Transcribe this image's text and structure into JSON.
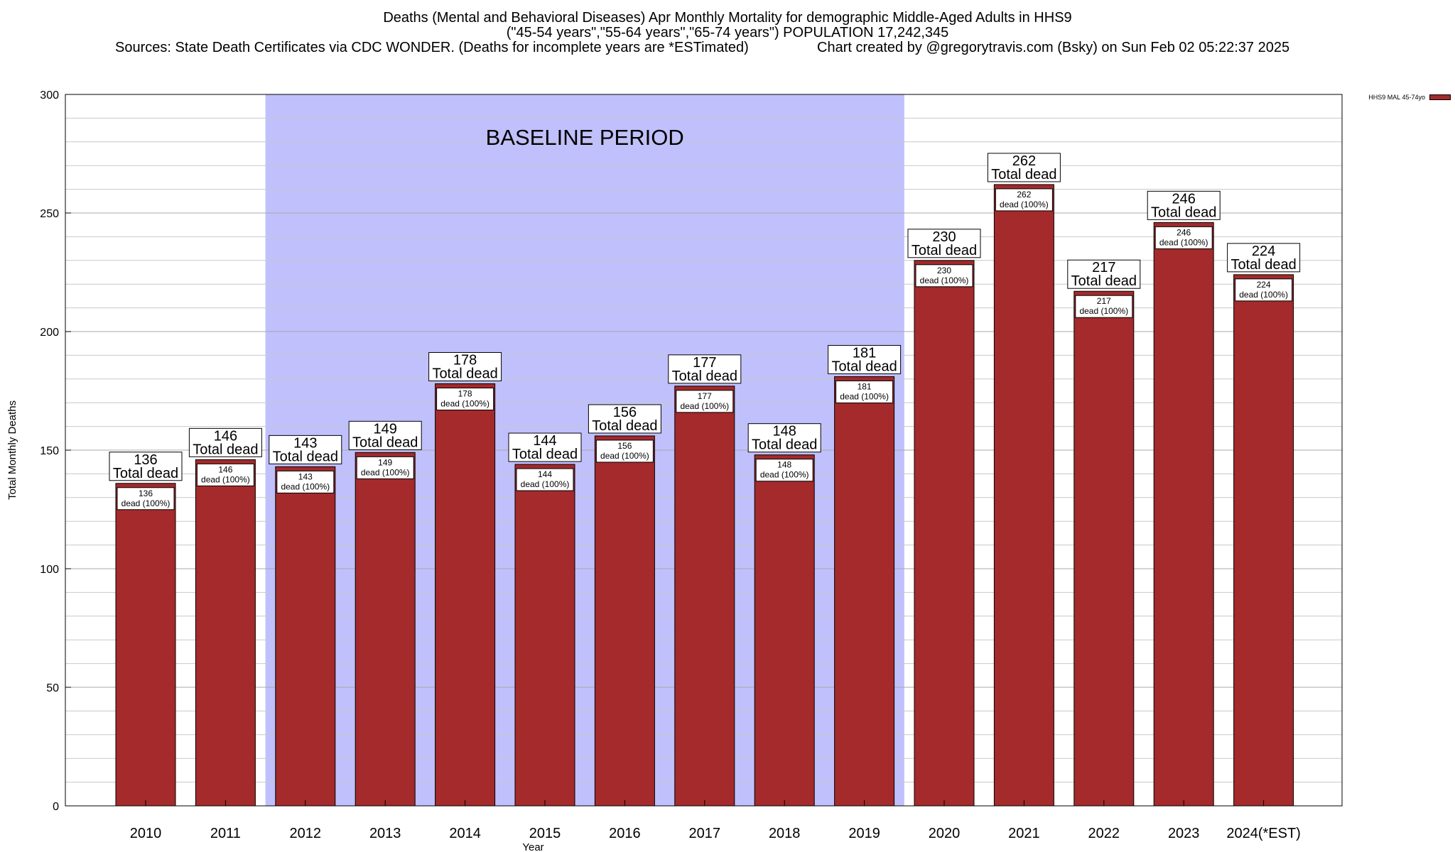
{
  "header": {
    "line1": "Deaths (Mental and Behavioral Diseases) Apr Monthly Mortality for demographic Middle-Aged Adults in HHS9",
    "line2": "(\"45-54 years\",\"55-64 years\",\"65-74 years\") POPULATION 17,242,345",
    "line3_left": "Sources: State Death Certificates via CDC WONDER. (Deaths for incomplete years are *ESTimated)",
    "line3_right": "Chart created by @gregorytravis.com (Bsky) on Sun Feb 02 05:22:37 2025"
  },
  "colors": {
    "bar": "#a42a2b",
    "baseline_band": "#c0c0fc",
    "grid": "#c8c8c8"
  },
  "chart_data": {
    "type": "bar",
    "title": "Deaths (Mental and Behavioral Diseases) Apr Monthly Mortality for demographic Middle-Aged Adults in HHS9",
    "xlabel": "Year",
    "ylabel": "Total Monthly Deaths",
    "ylim": [
      0,
      300
    ],
    "yticks": [
      0,
      50,
      100,
      150,
      200,
      250,
      300
    ],
    "grid": true,
    "legend_position": "top-right",
    "categories": [
      "2010",
      "2011",
      "2012",
      "2013",
      "2014",
      "2015",
      "2016",
      "2017",
      "2018",
      "2019",
      "2020",
      "2021",
      "2022",
      "2023",
      "2024(*EST)"
    ],
    "series": [
      {
        "name": "HHS9 MAL 45-74yo",
        "values": [
          136,
          146,
          143,
          149,
          178,
          144,
          156,
          177,
          148,
          181,
          230,
          262,
          217,
          246,
          224
        ]
      }
    ],
    "top_label_text": "Total dead",
    "inner_label_text": "dead (100%)",
    "baseline": {
      "label": "BASELINE PERIOD",
      "start": "2012",
      "end": "2019"
    }
  }
}
